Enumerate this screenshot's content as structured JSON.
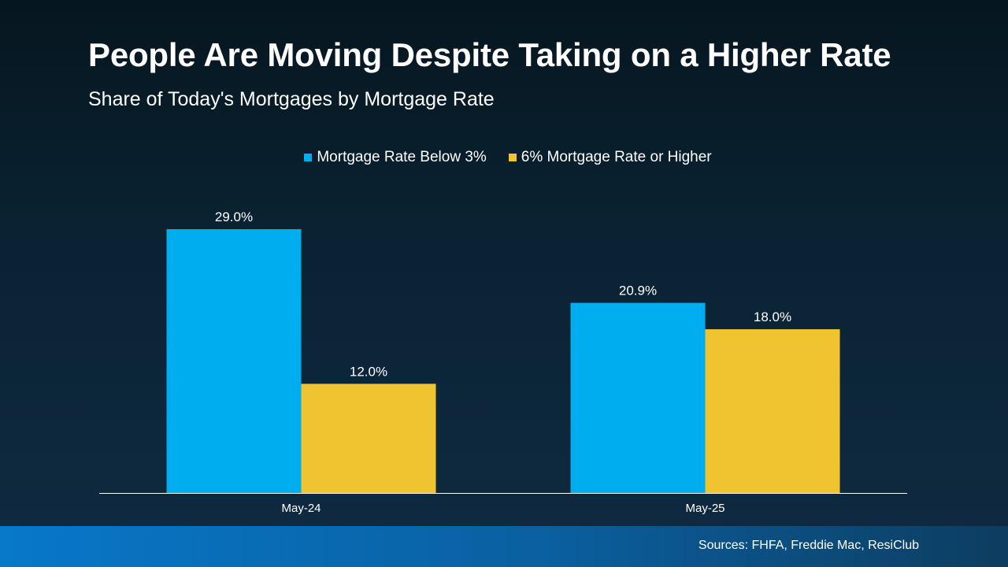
{
  "title": "People Are Moving Despite Taking on a Higher Rate",
  "subtitle": "Share of Today's Mortgages by Mortgage Rate",
  "source": "Sources: FHFA, Freddie Mac, ResiClub",
  "chart_data": {
    "type": "bar",
    "categories": [
      "May-24",
      "May-25"
    ],
    "series": [
      {
        "name": "Mortgage Rate Below 3%",
        "values": [
          29.0,
          20.9
        ],
        "labels": [
          "29.0%",
          "20.9%"
        ],
        "color": "#00aeef"
      },
      {
        "name": "6% Mortgage Rate or Higher",
        "values": [
          12.0,
          18.0
        ],
        "labels": [
          "12.0%",
          "18.0%"
        ],
        "color": "#f0c330"
      }
    ],
    "ylim": [
      0,
      29.0
    ],
    "grid": false,
    "legend": "top-center",
    "data_labels": true
  },
  "colors": {
    "background": "#0a2232",
    "footer_band": "#0878c9",
    "axis_line": "#ffffff"
  }
}
